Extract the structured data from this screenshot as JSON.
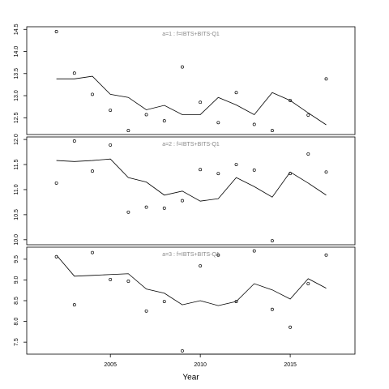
{
  "chart_data": [
    {
      "type": "scatter",
      "title": "a=1 : f=IBTS+BITS-Q1",
      "x": [
        2002,
        2003,
        2004,
        2005,
        2006,
        2007,
        2008,
        2009,
        2010,
        2011,
        2012,
        2013,
        2014,
        2015,
        2016,
        2017
      ],
      "series": [
        {
          "style": "points",
          "color": "#000000",
          "values": [
            14.45,
            13.51,
            13.03,
            12.67,
            12.21,
            12.57,
            12.43,
            13.65,
            12.85,
            12.39,
            13.07,
            12.35,
            12.21,
            12.89,
            12.56,
            13.38
          ]
        },
        {
          "style": "line",
          "color": "#000000",
          "values": [
            13.38,
            13.38,
            13.44,
            13.03,
            12.96,
            12.68,
            12.78,
            12.57,
            12.57,
            12.96,
            12.79,
            12.57,
            13.07,
            12.89,
            12.61,
            12.34
          ]
        }
      ],
      "xlim": [
        2000.35,
        2018.6
      ],
      "ylim": [
        12.12,
        14.56
      ],
      "yticks": [
        12.5,
        {
          "value": 13,
          "label": "13.0"
        },
        13.5,
        {
          "value": 14,
          "label": "14.0"
        },
        14.5
      ]
    },
    {
      "type": "scatter",
      "title": "a=2 : f=IBTS+BITS-Q1",
      "x": [
        2002,
        2003,
        2004,
        2005,
        2006,
        2007,
        2008,
        2009,
        2010,
        2011,
        2012,
        2013,
        2014,
        2015,
        2016,
        2017
      ],
      "series": [
        {
          "style": "points",
          "color": "#000000",
          "values": [
            11.13,
            11.97,
            11.37,
            11.89,
            10.55,
            10.65,
            10.63,
            10.78,
            11.4,
            11.32,
            11.5,
            11.39,
            9.98,
            11.32,
            11.71,
            11.35
          ]
        },
        {
          "style": "line",
          "color": "#000000",
          "values": [
            11.58,
            11.56,
            11.58,
            11.61,
            11.24,
            11.15,
            10.89,
            10.97,
            10.77,
            10.82,
            11.24,
            11.06,
            10.85,
            11.35,
            11.13,
            10.89
          ]
        }
      ],
      "xlim": [
        2000.35,
        2018.6
      ],
      "ylim": [
        9.9,
        12.05
      ],
      "yticks": [
        {
          "value": 10,
          "label": "10.0"
        },
        10.5,
        {
          "value": 11,
          "label": "11.0"
        },
        11.5,
        {
          "value": 12,
          "label": "12.0"
        }
      ]
    },
    {
      "type": "scatter",
      "title": "a=3 : f=IBTS+BITS-Q1",
      "x": [
        2002,
        2003,
        2004,
        2005,
        2006,
        2007,
        2008,
        2009,
        2010,
        2011,
        2012,
        2013,
        2014,
        2015,
        2016,
        2017
      ],
      "series": [
        {
          "style": "points",
          "color": "#000000",
          "values": [
            9.56,
            8.4,
            9.66,
            9.01,
            8.97,
            8.25,
            8.48,
            7.29,
            9.34,
            9.6,
            8.48,
            9.7,
            8.29,
            7.86,
            8.91,
            9.6
          ]
        },
        {
          "style": "line",
          "color": "#000000",
          "values": [
            9.6,
            9.09,
            9.11,
            9.13,
            9.15,
            8.78,
            8.68,
            8.4,
            8.5,
            8.38,
            8.48,
            8.91,
            8.76,
            8.54,
            9.03,
            8.8
          ]
        }
      ],
      "xlim": [
        2000.35,
        2018.6
      ],
      "ylim": [
        7.21,
        9.79
      ],
      "yticks": [
        7.5,
        {
          "value": 8,
          "label": "8.0"
        },
        8.5,
        {
          "value": 9,
          "label": "9.0"
        },
        9.5
      ],
      "xticks": [
        2005,
        2010,
        2015
      ],
      "x_label": "Year"
    }
  ]
}
